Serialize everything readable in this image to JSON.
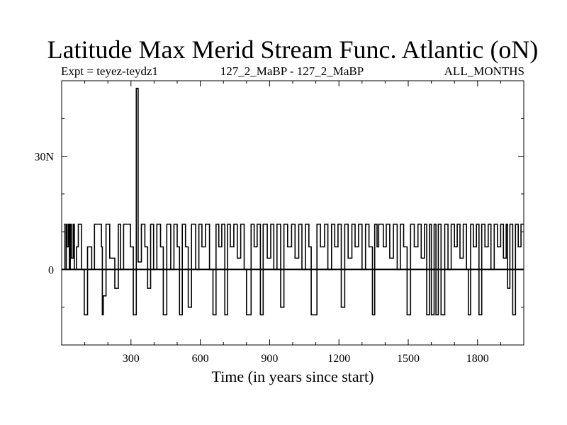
{
  "chart_data": {
    "type": "line",
    "title": "Latitude Max Merid Stream Func. Atlantic (oN)",
    "subtitle_left": "Expt = teyez-teydz1",
    "subtitle_center": "127_2_MaBP - 127_2_MaBP",
    "subtitle_right": "ALL_MONTHS",
    "xlabel": "Time (in years since start)",
    "ylabel": "",
    "xlim": [
      0,
      2000
    ],
    "ylim": [
      -20,
      50
    ],
    "x_ticks": [
      300,
      600,
      900,
      1200,
      1500,
      1800
    ],
    "x_tick_labels": [
      "300",
      "600",
      "900",
      "1200",
      "1500",
      "1800"
    ],
    "y_ticks": [
      0,
      30
    ],
    "y_tick_labels": [
      "0",
      "30N"
    ],
    "grid": false,
    "line_color": "#000000",
    "series": [
      {
        "x": [
          10,
          14,
          20,
          24,
          30,
          33,
          37,
          42,
          50,
          55,
          64,
          72,
          86,
          98,
          112,
          130,
          142,
          172,
          176,
          180,
          192,
          208,
          230,
          245,
          255,
          268,
          290,
          298,
          310,
          323,
          331,
          345,
          360,
          372,
          385,
          398,
          412,
          428,
          440,
          455,
          472,
          486,
          500,
          510,
          522,
          536,
          548,
          562,
          580,
          594,
          607,
          622,
          640,
          655,
          668,
          680,
          693,
          706,
          718,
          730,
          745,
          760,
          775,
          790,
          800,
          810,
          820,
          833,
          846,
          860,
          872,
          890,
          905,
          918,
          932,
          948,
          962,
          978,
          995,
          1010,
          1026,
          1040,
          1055,
          1070,
          1080,
          1090,
          1105,
          1120,
          1138,
          1152,
          1168,
          1182,
          1196,
          1210,
          1225,
          1240,
          1256,
          1270,
          1285,
          1300,
          1315,
          1330,
          1345,
          1355,
          1365,
          1372,
          1380,
          1392,
          1405,
          1420,
          1436,
          1452,
          1466,
          1480,
          1495,
          1510,
          1526,
          1542,
          1556,
          1570,
          1580,
          1592,
          1600,
          1606,
          1612,
          1620,
          1630,
          1642,
          1658,
          1672,
          1686,
          1700,
          1712,
          1724,
          1738,
          1752,
          1760,
          1770,
          1782,
          1795,
          1806,
          1818,
          1832,
          1846,
          1858,
          1872,
          1886,
          1900,
          1912,
          1924,
          1930,
          1940,
          1952,
          1964,
          1976,
          1988
        ],
        "y": [
          12,
          0,
          12,
          6,
          12,
          0,
          12,
          3,
          12,
          0,
          6,
          12,
          0,
          -12,
          6,
          0,
          12,
          6,
          -12,
          -7,
          12,
          3,
          -5,
          12,
          0,
          12,
          12,
          6,
          -12,
          48,
          2,
          12,
          6,
          -5,
          12,
          0,
          12,
          6,
          -12,
          12,
          0,
          12,
          6,
          -12,
          12,
          6,
          -10,
          12,
          0,
          12,
          6,
          12,
          0,
          -12,
          12,
          6,
          12,
          -12,
          12,
          6,
          12,
          3,
          12,
          0,
          -12,
          -12,
          12,
          6,
          12,
          -12,
          12,
          3,
          12,
          0,
          12,
          -10,
          12,
          6,
          12,
          3,
          12,
          0,
          12,
          6,
          -12,
          -12,
          12,
          6,
          12,
          0,
          12,
          6,
          12,
          -10,
          12,
          3,
          12,
          6,
          12,
          0,
          12,
          6,
          -12,
          12,
          6,
          12,
          12,
          6,
          12,
          3,
          12,
          0,
          12,
          6,
          -12,
          12,
          6,
          12,
          3,
          12,
          -12,
          12,
          -12,
          -12,
          12,
          -12,
          12,
          -12,
          12,
          0,
          12,
          6,
          12,
          3,
          12,
          0,
          -12,
          12,
          6,
          12,
          -12,
          12,
          6,
          12,
          0,
          12,
          6,
          12,
          3,
          12,
          -5,
          12,
          -12,
          12,
          6,
          12
        ]
      }
    ]
  }
}
